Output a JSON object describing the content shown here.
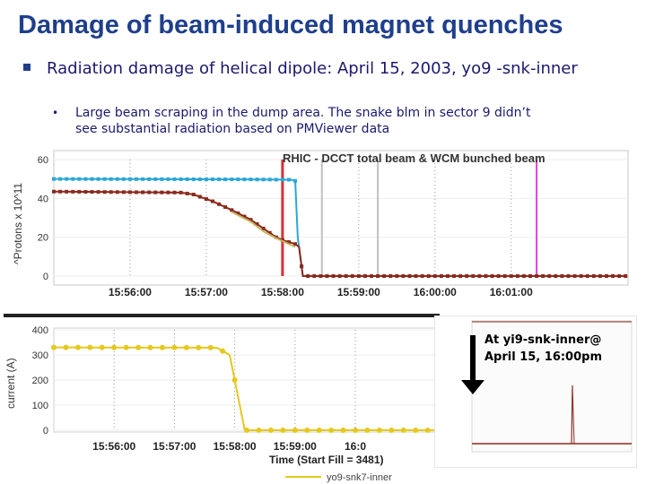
{
  "slide": {
    "title": "Damage of beam-induced magnet quenches",
    "bullet": "Radiation damage of helical dipole: April 15, 2003, yo9 -snk-inner",
    "sub_bullet": "Large beam scraping in the dump area. The snake blm in sector 9 didn’t see substantial radiation based on PMViewer data"
  },
  "chart_data": [
    {
      "type": "line",
      "title": "RHIC - DCCT total beam & WCM bunched beam",
      "ylabel": "^Protons x 10^11",
      "xlabel": "",
      "ylim": [
        0,
        60
      ],
      "yticks": [
        "0",
        "20",
        "40",
        "60"
      ],
      "xlim": [
        "15:55:00",
        "16:02:30"
      ],
      "xticks": [
        "15:56:00",
        "15:57:00",
        "15:58:00",
        "15:59:00",
        "16:00:00",
        "16:01:00"
      ],
      "series": [
        {
          "name": "DCCT total beam",
          "color": "#2aa7d6",
          "x": [
            0,
            150,
            187,
            190,
            192,
            196
          ],
          "y": [
            50,
            49.8,
            49.6,
            49,
            20,
            0
          ]
        },
        {
          "name": "WCM bunched beam",
          "color": "#8b2a1e",
          "x": [
            0,
            40,
            100,
            110,
            125,
            140,
            155,
            165,
            175,
            180,
            185,
            190,
            193,
            196,
            270,
            450
          ],
          "y": [
            43.5,
            43.3,
            43,
            42,
            38.5,
            34,
            29,
            24.5,
            20,
            18.5,
            17.5,
            16.5,
            15,
            0,
            0,
            0
          ]
        },
        {
          "name": "Beam overlay",
          "color": "#c8b560",
          "x": [
            140,
            155,
            165,
            175,
            180,
            185,
            190
          ],
          "y": [
            33,
            28,
            23,
            19.5,
            18,
            16.5,
            15
          ]
        }
      ],
      "markers": [
        {
          "x": 180,
          "color": "#d93030"
        },
        {
          "x": 211,
          "color": "#c0c0c0"
        },
        {
          "x": 255,
          "color": "#c0c0c0"
        },
        {
          "x": 380,
          "color": "#e040e0"
        }
      ]
    },
    {
      "type": "line",
      "title": "",
      "ylabel": "current (A)",
      "xlabel": "Time (Start Fill = 3481)",
      "ylim": [
        0,
        400
      ],
      "yticks": [
        "0",
        "100",
        "200",
        "300",
        "400"
      ],
      "xlim": [
        "15:55:00",
        "16:02:30"
      ],
      "xticks": [
        "15:56:00",
        "15:57:00",
        "15:58:00",
        "15:59:00",
        "16:0"
      ],
      "legend": "yo9-snk7-inner",
      "series": [
        {
          "name": "yo9-snk7-inner",
          "color": "#e6c81e",
          "x": [
            0,
            162,
            175,
            190,
            390
          ],
          "y": [
            330,
            329,
            300,
            0,
            0
          ]
        }
      ]
    }
  ],
  "inset": {
    "annotation_line1": "At yi9-snk-inner@",
    "annotation_line2": "April 15, 16:00pm",
    "baseline_color": "#8b2a1e",
    "spike_color": "#8b2a1e"
  }
}
